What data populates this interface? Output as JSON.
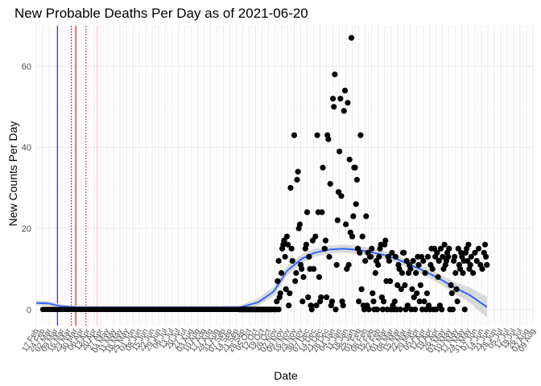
{
  "chart_data": {
    "type": "scatter",
    "title": "New Probable Deaths Per Day as of 2021-06-20",
    "xlabel": "Date",
    "ylabel": "New Counts Per Day",
    "xlim": [
      "2020-02-17",
      "2021-08-09"
    ],
    "ylim": [
      -4,
      70
    ],
    "y_ticks": [
      0,
      20,
      40,
      60
    ],
    "x_tick_labels": [
      "17 Feb",
      "24 Feb",
      "02 Mar",
      "09 Mar",
      "16 Mar",
      "23 Mar",
      "30 Mar",
      "06 Apr",
      "13 Apr",
      "20 Apr",
      "27 Apr",
      "04 May",
      "11 May",
      "18 May",
      "25 May",
      "01 Jun",
      "08 Jun",
      "15 Jun",
      "22 Jun",
      "29 Jun",
      "06 Jul",
      "13 Jul",
      "20 Jul",
      "27 Jul",
      "03 Aug",
      "10 Aug",
      "17 Aug",
      "24 Aug",
      "31 Aug",
      "07 Sep",
      "14 Sep",
      "21 Sep",
      "28 Sep",
      "05 Oct",
      "12 Oct",
      "19 Oct",
      "26 Oct",
      "02 Nov",
      "09 Nov",
      "16 Nov",
      "23 Nov",
      "30 Nov",
      "07 Dec",
      "14 Dec",
      "21 Dec",
      "28 Dec",
      "04 Jan",
      "11 Jan",
      "18 Jan",
      "25 Jan",
      "01 Feb",
      "08 Feb",
      "15 Feb",
      "22 Feb",
      "01 Mar",
      "08 Mar",
      "15 Mar",
      "22 Mar",
      "29 Mar",
      "05 Apr",
      "12 Apr",
      "19 Apr",
      "26 Apr",
      "03 May",
      "10 May",
      "17 May",
      "24 May",
      "31 May",
      "07 Jun",
      "14 Jun",
      "21 Jun",
      "28 Jun",
      "05 Jul",
      "12 Jul",
      "19 Jul",
      "26 Jul",
      "02 Aug",
      "09 Aug"
    ],
    "grid": true,
    "vlines": [
      {
        "date": "2020-03-11",
        "color": "#0000ff",
        "style": "solid"
      },
      {
        "date": "2020-03-26",
        "color": "#8b0000",
        "style": "dotted"
      },
      {
        "date": "2020-03-31",
        "color": "#cc0000",
        "style": "solid"
      },
      {
        "date": "2020-04-11",
        "color": "#8b0000",
        "style": "dotted"
      },
      {
        "date": "2020-04-23",
        "color": "#ffb6c1",
        "style": "solid"
      }
    ],
    "points": [
      [
        "2020-09-25",
        0
      ],
      [
        "2020-09-27",
        0
      ],
      [
        "2020-09-29",
        0
      ],
      [
        "2020-10-01",
        0
      ],
      [
        "2020-10-03",
        0
      ],
      [
        "2020-10-05",
        0
      ],
      [
        "2020-10-07",
        0
      ],
      [
        "2020-10-09",
        0
      ],
      [
        "2020-10-11",
        0
      ],
      [
        "2020-10-13",
        0
      ],
      [
        "2020-10-15",
        0
      ],
      [
        "2020-10-17",
        0
      ],
      [
        "2020-10-19",
        0
      ],
      [
        "2020-10-21",
        0
      ],
      [
        "2020-10-23",
        0
      ],
      [
        "2020-10-25",
        0
      ],
      [
        "2020-10-27",
        0
      ],
      [
        "2020-10-29",
        0
      ],
      [
        "2020-11-01",
        0
      ],
      [
        "2020-11-03",
        0
      ],
      [
        "2020-11-06",
        0
      ],
      [
        "2020-11-04",
        2
      ],
      [
        "2020-11-05",
        7
      ],
      [
        "2020-11-06",
        12
      ],
      [
        "2020-11-07",
        3
      ],
      [
        "2020-11-08",
        4
      ],
      [
        "2020-11-09",
        9
      ],
      [
        "2020-11-10",
        15
      ],
      [
        "2020-11-11",
        16
      ],
      [
        "2020-11-12",
        17
      ],
      [
        "2020-11-13",
        13
      ],
      [
        "2020-11-14",
        5
      ],
      [
        "2020-11-15",
        18
      ],
      [
        "2020-11-16",
        16
      ],
      [
        "2020-11-17",
        1
      ],
      [
        "2020-11-18",
        4
      ],
      [
        "2020-11-19",
        30
      ],
      [
        "2020-11-20",
        15
      ],
      [
        "2020-11-21",
        12
      ],
      [
        "2020-11-23",
        43
      ],
      [
        "2020-11-24",
        7
      ],
      [
        "2020-11-25",
        9
      ],
      [
        "2020-11-26",
        32
      ],
      [
        "2020-11-27",
        34
      ],
      [
        "2020-11-28",
        20
      ],
      [
        "2020-11-29",
        21
      ],
      [
        "2020-11-30",
        11
      ],
      [
        "2020-12-01",
        10
      ],
      [
        "2020-12-02",
        2
      ],
      [
        "2020-12-03",
        8
      ],
      [
        "2020-12-05",
        15
      ],
      [
        "2020-12-06",
        16
      ],
      [
        "2020-12-07",
        24
      ],
      [
        "2020-12-08",
        3
      ],
      [
        "2020-12-09",
        13
      ],
      [
        "2020-12-10",
        10
      ],
      [
        "2020-12-11",
        1
      ],
      [
        "2020-12-12",
        0
      ],
      [
        "2020-12-13",
        17
      ],
      [
        "2020-12-14",
        10
      ],
      [
        "2020-12-16",
        18
      ],
      [
        "2020-12-17",
        1
      ],
      [
        "2020-12-18",
        43
      ],
      [
        "2020-12-19",
        24
      ],
      [
        "2020-12-20",
        8
      ],
      [
        "2020-12-21",
        2
      ],
      [
        "2020-12-22",
        3
      ],
      [
        "2020-12-23",
        24
      ],
      [
        "2020-12-24",
        35
      ],
      [
        "2020-12-26",
        15
      ],
      [
        "2020-12-27",
        17
      ],
      [
        "2020-12-28",
        3
      ],
      [
        "2020-12-29",
        43
      ],
      [
        "2020-12-30",
        42
      ],
      [
        "2020-12-31",
        13
      ],
      [
        "2021-01-01",
        31
      ],
      [
        "2021-01-02",
        1
      ],
      [
        "2021-01-03",
        2
      ],
      [
        "2021-01-04",
        52
      ],
      [
        "2021-01-05",
        50
      ],
      [
        "2021-01-06",
        58
      ],
      [
        "2021-01-07",
        0
      ],
      [
        "2021-01-08",
        11
      ],
      [
        "2021-01-09",
        22
      ],
      [
        "2021-01-10",
        29
      ],
      [
        "2021-01-11",
        39
      ],
      [
        "2021-01-12",
        52
      ],
      [
        "2021-01-13",
        28
      ],
      [
        "2021-01-14",
        2
      ],
      [
        "2021-01-15",
        1
      ],
      [
        "2021-01-16",
        49
      ],
      [
        "2021-01-17",
        54
      ],
      [
        "2021-01-18",
        21
      ],
      [
        "2021-01-19",
        10
      ],
      [
        "2021-01-20",
        51
      ],
      [
        "2021-01-21",
        11
      ],
      [
        "2021-01-22",
        37
      ],
      [
        "2021-01-23",
        19
      ],
      [
        "2021-01-24",
        67
      ],
      [
        "2021-01-25",
        18
      ],
      [
        "2021-01-26",
        23
      ],
      [
        "2021-01-27",
        35
      ],
      [
        "2021-01-28",
        35
      ],
      [
        "2021-01-29",
        26
      ],
      [
        "2021-01-30",
        32
      ],
      [
        "2021-01-31",
        15
      ],
      [
        "2021-02-01",
        2
      ],
      [
        "2021-02-02",
        14
      ],
      [
        "2021-02-03",
        43
      ],
      [
        "2021-02-04",
        5
      ],
      [
        "2021-02-05",
        18
      ],
      [
        "2021-02-06",
        1
      ],
      [
        "2021-02-07",
        0
      ],
      [
        "2021-02-08",
        12
      ],
      [
        "2021-02-09",
        23
      ],
      [
        "2021-02-10",
        1
      ],
      [
        "2021-02-11",
        14
      ],
      [
        "2021-02-12",
        0
      ],
      [
        "2021-02-13",
        13
      ],
      [
        "2021-02-14",
        13
      ],
      [
        "2021-02-15",
        15
      ],
      [
        "2021-02-16",
        4
      ],
      [
        "2021-02-17",
        2
      ],
      [
        "2021-02-18",
        0
      ],
      [
        "2021-02-19",
        9
      ],
      [
        "2021-02-20",
        12
      ],
      [
        "2021-02-21",
        0
      ],
      [
        "2021-02-22",
        11
      ],
      [
        "2021-02-23",
        13
      ],
      [
        "2021-02-24",
        15
      ],
      [
        "2021-02-25",
        16
      ],
      [
        "2021-02-26",
        3
      ],
      [
        "2021-02-27",
        0
      ],
      [
        "2021-02-28",
        2
      ],
      [
        "2021-03-01",
        16
      ],
      [
        "2021-03-02",
        17
      ],
      [
        "2021-03-03",
        7
      ],
      [
        "2021-03-04",
        0
      ],
      [
        "2021-03-05",
        13
      ],
      [
        "2021-03-06",
        12
      ],
      [
        "2021-03-07",
        7
      ],
      [
        "2021-03-08",
        0
      ],
      [
        "2021-03-09",
        14
      ],
      [
        "2021-03-10",
        1
      ],
      [
        "2021-03-11",
        0
      ],
      [
        "2021-03-12",
        2
      ],
      [
        "2021-03-13",
        13
      ],
      [
        "2021-03-14",
        0
      ],
      [
        "2021-03-15",
        6
      ],
      [
        "2021-03-16",
        11
      ],
      [
        "2021-03-17",
        10
      ],
      [
        "2021-03-18",
        0
      ],
      [
        "2021-03-19",
        5
      ],
      [
        "2021-03-20",
        9
      ],
      [
        "2021-03-21",
        14
      ],
      [
        "2021-03-22",
        14
      ],
      [
        "2021-03-23",
        6
      ],
      [
        "2021-03-24",
        0
      ],
      [
        "2021-03-25",
        12
      ],
      [
        "2021-03-26",
        1
      ],
      [
        "2021-03-27",
        9
      ],
      [
        "2021-03-28",
        11
      ],
      [
        "2021-03-29",
        10
      ],
      [
        "2021-03-30",
        0
      ],
      [
        "2021-03-31",
        5
      ],
      [
        "2021-04-01",
        12
      ],
      [
        "2021-04-02",
        3
      ],
      [
        "2021-04-03",
        0
      ],
      [
        "2021-04-04",
        9
      ],
      [
        "2021-04-05",
        4
      ],
      [
        "2021-04-06",
        13
      ],
      [
        "2021-04-07",
        11
      ],
      [
        "2021-04-08",
        2
      ],
      [
        "2021-04-09",
        6
      ],
      [
        "2021-04-10",
        13
      ],
      [
        "2021-04-11",
        0
      ],
      [
        "2021-04-12",
        12
      ],
      [
        "2021-04-13",
        2
      ],
      [
        "2021-04-14",
        9
      ],
      [
        "2021-04-15",
        0
      ],
      [
        "2021-04-16",
        4
      ],
      [
        "2021-04-17",
        13
      ],
      [
        "2021-04-18",
        1
      ],
      [
        "2021-04-19",
        0
      ],
      [
        "2021-04-20",
        11
      ],
      [
        "2021-04-21",
        15
      ],
      [
        "2021-04-22",
        10
      ],
      [
        "2021-04-23",
        0
      ],
      [
        "2021-04-24",
        15
      ],
      [
        "2021-04-25",
        13
      ],
      [
        "2021-04-26",
        0
      ],
      [
        "2021-04-27",
        14
      ],
      [
        "2021-04-28",
        8
      ],
      [
        "2021-04-29",
        12
      ],
      [
        "2021-04-30",
        1
      ],
      [
        "2021-05-01",
        15
      ],
      [
        "2021-05-02",
        0
      ],
      [
        "2021-05-03",
        13
      ],
      [
        "2021-05-04",
        10
      ],
      [
        "2021-05-05",
        16
      ],
      [
        "2021-05-06",
        11
      ],
      [
        "2021-05-07",
        12
      ],
      [
        "2021-05-08",
        14
      ],
      [
        "2021-05-09",
        13
      ],
      [
        "2021-05-10",
        15
      ],
      [
        "2021-05-11",
        0
      ],
      [
        "2021-05-12",
        6
      ],
      [
        "2021-05-13",
        4
      ],
      [
        "2021-05-14",
        0
      ],
      [
        "2021-05-15",
        12
      ],
      [
        "2021-05-16",
        13
      ],
      [
        "2021-05-17",
        9
      ],
      [
        "2021-05-18",
        5
      ],
      [
        "2021-05-19",
        2
      ],
      [
        "2021-05-20",
        15
      ],
      [
        "2021-05-21",
        11
      ],
      [
        "2021-05-22",
        10
      ],
      [
        "2021-05-23",
        14
      ],
      [
        "2021-05-24",
        13
      ],
      [
        "2021-05-25",
        9
      ],
      [
        "2021-05-26",
        12
      ],
      [
        "2021-05-27",
        0
      ],
      [
        "2021-05-28",
        14
      ],
      [
        "2021-05-29",
        15
      ],
      [
        "2021-05-30",
        12
      ],
      [
        "2021-05-31",
        16
      ],
      [
        "2021-06-01",
        10
      ],
      [
        "2021-06-02",
        11
      ],
      [
        "2021-06-03",
        13
      ],
      [
        "2021-06-05",
        9
      ],
      [
        "2021-06-07",
        14
      ],
      [
        "2021-06-09",
        12
      ],
      [
        "2021-06-11",
        15
      ],
      [
        "2021-06-13",
        11
      ],
      [
        "2021-06-15",
        10
      ],
      [
        "2021-06-17",
        14
      ],
      [
        "2021-06-18",
        16
      ],
      [
        "2021-06-19",
        13
      ],
      [
        "2021-06-20",
        11
      ]
    ],
    "smooth": {
      "x": [
        "2020-02-17",
        "2020-03-01",
        "2020-03-15",
        "2020-04-01",
        "2020-05-01",
        "2020-06-01",
        "2020-07-01",
        "2020-08-01",
        "2020-09-01",
        "2020-09-25",
        "2020-10-15",
        "2020-11-01",
        "2020-11-15",
        "2020-12-01",
        "2020-12-15",
        "2021-01-01",
        "2021-01-15",
        "2021-02-01",
        "2021-02-15",
        "2021-03-01",
        "2021-03-15",
        "2021-04-01",
        "2021-04-15",
        "2021-05-01",
        "2021-05-15",
        "2021-06-01",
        "2021-06-20"
      ],
      "y": [
        1.6,
        1.5,
        0.8,
        0.5,
        0.5,
        0.5,
        0.5,
        0.5,
        0.5,
        0.5,
        1.8,
        4.5,
        9.5,
        12.5,
        14.0,
        14.8,
        15.0,
        14.7,
        14.1,
        13.4,
        12.4,
        10.7,
        9.3,
        7.4,
        5.5,
        3.6,
        0.6
      ],
      "band": [
        0.6,
        0.6,
        0.5,
        0.4,
        0.4,
        0.4,
        0.4,
        0.4,
        0.4,
        0.5,
        0.9,
        1.2,
        1.2,
        1.1,
        1.0,
        1.0,
        1.0,
        1.0,
        1.0,
        1.0,
        1.0,
        1.1,
        1.1,
        1.2,
        1.4,
        1.9,
        2.6
      ],
      "color": "#3366ff",
      "band_color": "#d9d9d9"
    }
  }
}
